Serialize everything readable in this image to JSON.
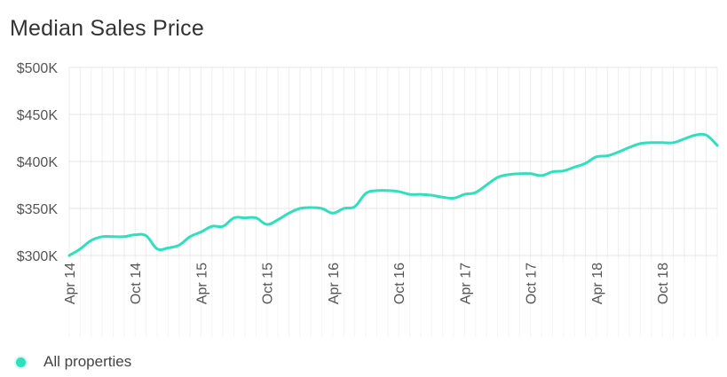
{
  "chart_data": {
    "type": "line",
    "title": "Median Sales Price",
    "xlabel": "",
    "ylabel": "",
    "ylim": [
      300000,
      500000
    ],
    "y_ticks": [
      {
        "value": 300000,
        "label": "$300K"
      },
      {
        "value": 350000,
        "label": "$350K"
      },
      {
        "value": 400000,
        "label": "$400K"
      },
      {
        "value": 450000,
        "label": "$450K"
      },
      {
        "value": 500000,
        "label": "$500K"
      }
    ],
    "x_ticks": [
      {
        "value": 0,
        "label": "Apr 14"
      },
      {
        "value": 6,
        "label": "Oct 14"
      },
      {
        "value": 12,
        "label": "Apr 15"
      },
      {
        "value": 18,
        "label": "Oct 15"
      },
      {
        "value": 24,
        "label": "Apr 16"
      },
      {
        "value": 30,
        "label": "Oct 16"
      },
      {
        "value": 36,
        "label": "Apr 17"
      },
      {
        "value": 42,
        "label": "Oct 17"
      },
      {
        "value": 48,
        "label": "Apr 18"
      },
      {
        "value": 54,
        "label": "Oct 18"
      }
    ],
    "xlim": [
      0,
      59
    ],
    "grid": true,
    "legend_position": "bottom-left",
    "series": [
      {
        "name": "All properties",
        "color": "#2fe0bd",
        "x": [
          0,
          1,
          2,
          3,
          4,
          5,
          6,
          7,
          8,
          9,
          10,
          11,
          12,
          13,
          14,
          15,
          16,
          17,
          18,
          19,
          20,
          21,
          22,
          23,
          24,
          25,
          26,
          27,
          28,
          29,
          30,
          31,
          32,
          33,
          34,
          35,
          36,
          37,
          38,
          39,
          40,
          41,
          42,
          43,
          44,
          45,
          46,
          47,
          48,
          49,
          50,
          51,
          52,
          53,
          54,
          55,
          56,
          57,
          58,
          59
        ],
        "values": [
          300000,
          307000,
          316000,
          320000,
          320000,
          320000,
          322000,
          321000,
          307000,
          308000,
          311000,
          320000,
          325000,
          331000,
          331000,
          340000,
          340000,
          340000,
          333000,
          338000,
          345000,
          350000,
          351000,
          350000,
          345000,
          350000,
          352000,
          366000,
          369000,
          369000,
          368000,
          365000,
          365000,
          364000,
          362000,
          361000,
          365000,
          367000,
          375000,
          383000,
          386000,
          387000,
          387000,
          385000,
          389000,
          390000,
          394000,
          398000,
          405000,
          406000,
          410000,
          415000,
          419000,
          420000,
          420000,
          420000,
          424000,
          428000,
          428000,
          417000
        ]
      }
    ]
  },
  "legend": {
    "label": "All properties",
    "color": "#2fe0bd"
  }
}
